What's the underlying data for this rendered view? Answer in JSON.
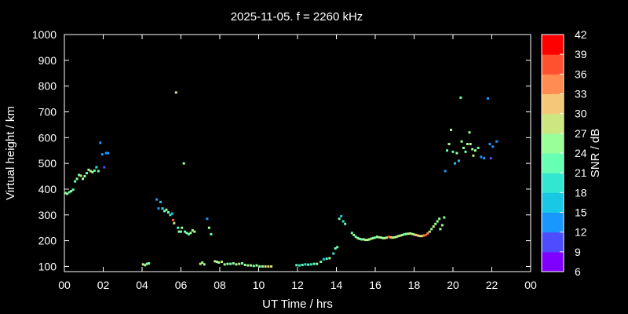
{
  "chart_data": {
    "type": "scatter",
    "title": "2025-11-05. f = 2260 kHz",
    "xlabel": "UT Time / hrs",
    "ylabel": "Virtual height / km",
    "xlim": [
      0,
      24
    ],
    "ylim": [
      80,
      1000
    ],
    "xticks": [
      "00",
      "02",
      "04",
      "06",
      "08",
      "10",
      "12",
      "14",
      "16",
      "18",
      "20",
      "22",
      "00"
    ],
    "yticks": [
      100,
      200,
      300,
      400,
      500,
      600,
      700,
      800,
      900,
      1000
    ],
    "grid": false,
    "colorbar": {
      "label": "SNR / dB",
      "ticks": [
        6,
        9,
        12,
        15,
        18,
        21,
        24,
        27,
        30,
        33,
        36,
        39,
        42
      ],
      "colors": [
        "#8000ff",
        "#4d4dff",
        "#1a96ff",
        "#1ac8e6",
        "#33e6d2",
        "#66ffb3",
        "#99ff99",
        "#cce680",
        "#f5c878",
        "#ff8c50",
        "#ff5030",
        "#ff0000"
      ]
    },
    "series": [
      {
        "points": [
          [
            0.05,
            385,
            24
          ],
          [
            0.15,
            382,
            24
          ],
          [
            0.25,
            388,
            21
          ],
          [
            0.35,
            392,
            24
          ],
          [
            0.45,
            398,
            21
          ],
          [
            0.55,
            430,
            21
          ],
          [
            0.65,
            440,
            24
          ],
          [
            0.75,
            455,
            21
          ],
          [
            0.85,
            452,
            27
          ],
          [
            0.95,
            440,
            24
          ],
          [
            1.05,
            450,
            24
          ],
          [
            1.15,
            462,
            21
          ],
          [
            1.25,
            475,
            24
          ],
          [
            1.35,
            470,
            27
          ],
          [
            1.45,
            466,
            24
          ],
          [
            1.55,
            472,
            21
          ],
          [
            1.65,
            485,
            18
          ],
          [
            1.75,
            470,
            21
          ],
          [
            1.85,
            580,
            12
          ],
          [
            1.95,
            535,
            12
          ],
          [
            2.05,
            485,
            9
          ],
          [
            2.15,
            540,
            12
          ],
          [
            2.25,
            540,
            12
          ],
          [
            4.05,
            108,
            27
          ],
          [
            4.15,
            105,
            24
          ],
          [
            4.25,
            110,
            24
          ],
          [
            4.35,
            112,
            21
          ],
          [
            4.75,
            360,
            12
          ],
          [
            4.85,
            325,
            12
          ],
          [
            4.95,
            350,
            15
          ],
          [
            5.05,
            325,
            18
          ],
          [
            5.15,
            315,
            21
          ],
          [
            5.25,
            320,
            24
          ],
          [
            5.35,
            310,
            21
          ],
          [
            5.45,
            300,
            18
          ],
          [
            5.55,
            305,
            15
          ],
          [
            5.6,
            280,
            36
          ],
          [
            5.65,
            268,
            27
          ],
          [
            5.75,
            775,
            27
          ],
          [
            5.85,
            250,
            21
          ],
          [
            5.9,
            235,
            24
          ],
          [
            6.0,
            235,
            21
          ],
          [
            6.05,
            250,
            24
          ],
          [
            6.15,
            500,
            24
          ],
          [
            6.2,
            235,
            21
          ],
          [
            6.3,
            230,
            24
          ],
          [
            6.4,
            225,
            21
          ],
          [
            6.5,
            230,
            24
          ],
          [
            6.6,
            240,
            27
          ],
          [
            6.7,
            235,
            24
          ],
          [
            7.0,
            110,
            27
          ],
          [
            7.1,
            115,
            24
          ],
          [
            7.2,
            108,
            24
          ],
          [
            7.35,
            285,
            12
          ],
          [
            7.45,
            250,
            24
          ],
          [
            7.55,
            225,
            21
          ],
          [
            7.75,
            120,
            27
          ],
          [
            7.85,
            118,
            24
          ],
          [
            7.95,
            115,
            24
          ],
          [
            8.1,
            118,
            27
          ],
          [
            8.25,
            108,
            24
          ],
          [
            8.4,
            110,
            24
          ],
          [
            8.55,
            110,
            21
          ],
          [
            8.7,
            112,
            24
          ],
          [
            8.85,
            108,
            24
          ],
          [
            9.0,
            110,
            27
          ],
          [
            9.15,
            112,
            21
          ],
          [
            9.3,
            106,
            24
          ],
          [
            9.45,
            104,
            24
          ],
          [
            9.6,
            104,
            27
          ],
          [
            9.75,
            102,
            21
          ],
          [
            9.9,
            104,
            24
          ],
          [
            10.05,
            100,
            24
          ],
          [
            10.2,
            100,
            24
          ],
          [
            10.35,
            100,
            27
          ],
          [
            10.5,
            100,
            30
          ],
          [
            10.65,
            100,
            27
          ],
          [
            11.95,
            105,
            21
          ],
          [
            12.1,
            104,
            18
          ],
          [
            12.25,
            106,
            21
          ],
          [
            12.4,
            108,
            18
          ],
          [
            12.55,
            107,
            21
          ],
          [
            12.7,
            108,
            18
          ],
          [
            12.85,
            110,
            21
          ],
          [
            13.0,
            110,
            24
          ],
          [
            13.2,
            118,
            21
          ],
          [
            13.35,
            128,
            15
          ],
          [
            13.5,
            130,
            21
          ],
          [
            13.65,
            132,
            24
          ],
          [
            13.85,
            150,
            18
          ],
          [
            13.95,
            170,
            21
          ],
          [
            14.05,
            175,
            21
          ],
          [
            14.15,
            285,
            21
          ],
          [
            14.25,
            295,
            15
          ],
          [
            14.35,
            275,
            18
          ],
          [
            14.45,
            265,
            21
          ],
          [
            14.8,
            230,
            21
          ],
          [
            14.9,
            222,
            24
          ],
          [
            15.0,
            215,
            21
          ],
          [
            15.1,
            210,
            24
          ],
          [
            15.2,
            207,
            24
          ],
          [
            15.3,
            205,
            21
          ],
          [
            15.4,
            205,
            24
          ],
          [
            15.5,
            203,
            27
          ],
          [
            15.6,
            203,
            24
          ],
          [
            15.7,
            205,
            24
          ],
          [
            15.8,
            208,
            27
          ],
          [
            15.9,
            210,
            24
          ],
          [
            16.0,
            212,
            21
          ],
          [
            16.1,
            215,
            24
          ],
          [
            16.2,
            213,
            27
          ],
          [
            16.3,
            212,
            24
          ],
          [
            16.4,
            210,
            24
          ],
          [
            16.5,
            210,
            27
          ],
          [
            16.6,
            212,
            24
          ],
          [
            16.7,
            215,
            36
          ],
          [
            16.8,
            213,
            30
          ],
          [
            16.9,
            212,
            27
          ],
          [
            17.0,
            213,
            24
          ],
          [
            17.1,
            215,
            27
          ],
          [
            17.2,
            218,
            24
          ],
          [
            17.3,
            220,
            27
          ],
          [
            17.4,
            222,
            24
          ],
          [
            17.5,
            225,
            21
          ],
          [
            17.6,
            226,
            24
          ],
          [
            17.7,
            227,
            27
          ],
          [
            17.8,
            228,
            27
          ],
          [
            17.9,
            226,
            24
          ],
          [
            18.0,
            224,
            27
          ],
          [
            18.1,
            222,
            30
          ],
          [
            18.2,
            220,
            30
          ],
          [
            18.3,
            218,
            27
          ],
          [
            18.4,
            218,
            30
          ],
          [
            18.5,
            220,
            33
          ],
          [
            18.6,
            222,
            36
          ],
          [
            18.7,
            228,
            33
          ],
          [
            18.8,
            235,
            27
          ],
          [
            18.9,
            245,
            24
          ],
          [
            19.0,
            255,
            27
          ],
          [
            19.1,
            265,
            24
          ],
          [
            19.2,
            275,
            24
          ],
          [
            19.3,
            285,
            24
          ],
          [
            19.35,
            245,
            24
          ],
          [
            19.45,
            260,
            24
          ],
          [
            19.55,
            290,
            24
          ],
          [
            19.6,
            470,
            12
          ],
          [
            19.7,
            550,
            21
          ],
          [
            19.8,
            575,
            24
          ],
          [
            19.9,
            630,
            24
          ],
          [
            20.0,
            545,
            21
          ],
          [
            20.1,
            500,
            15
          ],
          [
            20.2,
            540,
            24
          ],
          [
            20.3,
            510,
            15
          ],
          [
            20.4,
            755,
            21
          ],
          [
            20.45,
            585,
            24
          ],
          [
            20.55,
            560,
            24
          ],
          [
            20.65,
            545,
            21
          ],
          [
            20.75,
            575,
            24
          ],
          [
            20.85,
            620,
            24
          ],
          [
            20.9,
            575,
            27
          ],
          [
            21.0,
            555,
            24
          ],
          [
            21.05,
            530,
            27
          ],
          [
            21.15,
            550,
            24
          ],
          [
            21.3,
            560,
            21
          ],
          [
            21.45,
            525,
            12
          ],
          [
            21.6,
            520,
            12
          ],
          [
            21.8,
            752,
            12
          ],
          [
            21.9,
            575,
            12
          ],
          [
            21.95,
            520,
            9
          ],
          [
            22.05,
            565,
            12
          ],
          [
            22.25,
            585,
            12
          ]
        ]
      }
    ]
  }
}
